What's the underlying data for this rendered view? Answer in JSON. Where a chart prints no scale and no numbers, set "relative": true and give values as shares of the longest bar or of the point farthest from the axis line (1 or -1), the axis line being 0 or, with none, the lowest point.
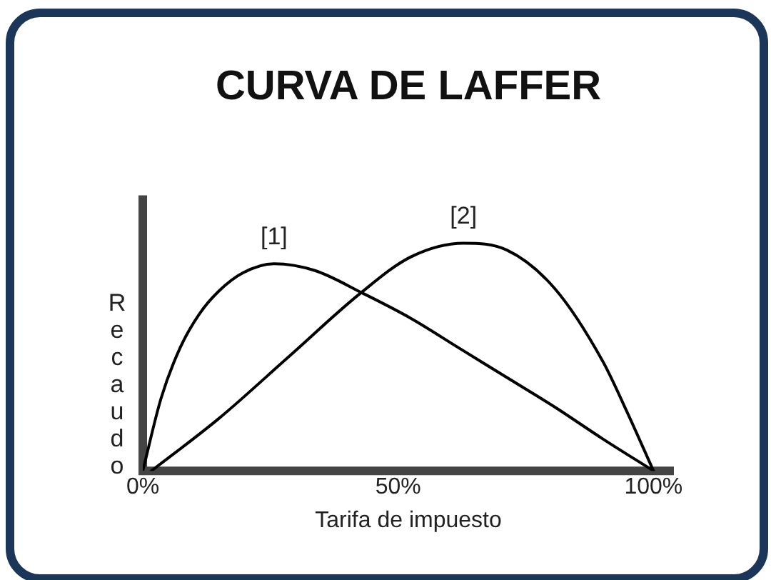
{
  "chart_data": {
    "type": "line",
    "title": "CURVA DE LAFFER",
    "xlabel": "Tarifa de impuesto",
    "ylabel": "Recaudo",
    "relative": true,
    "xlim": [
      0,
      104
    ],
    "xticks": [
      {
        "value": 0,
        "label": "0%"
      },
      {
        "value": 50,
        "label": "50%"
      },
      {
        "value": 100,
        "label": "100%"
      }
    ],
    "grid": false,
    "legend": false,
    "marker": "none",
    "line_style": "solid",
    "series": [
      {
        "name": "[1]",
        "color": "#000000",
        "x": [
          0,
          3.6,
          7.3,
          11.1,
          14.9,
          19.6,
          25.7,
          33.7,
          43.1,
          52.5,
          61.9,
          71.3,
          80.7,
          90.1,
          100
        ],
        "values": [
          0,
          0.32,
          0.54,
          0.69,
          0.79,
          0.87,
          0.91,
          0.88,
          0.78,
          0.67,
          0.54,
          0.41,
          0.28,
          0.14,
          0
        ]
      },
      {
        "name": "[2]",
        "color": "#000000",
        "x": [
          1.7,
          14.9,
          29,
          42.6,
          52.5,
          62.8,
          71.3,
          80.7,
          90.1,
          94.8,
          100
        ],
        "values": [
          0,
          0.23,
          0.51,
          0.78,
          0.94,
          1,
          0.97,
          0.8,
          0.48,
          0.26,
          0
        ]
      }
    ]
  }
}
